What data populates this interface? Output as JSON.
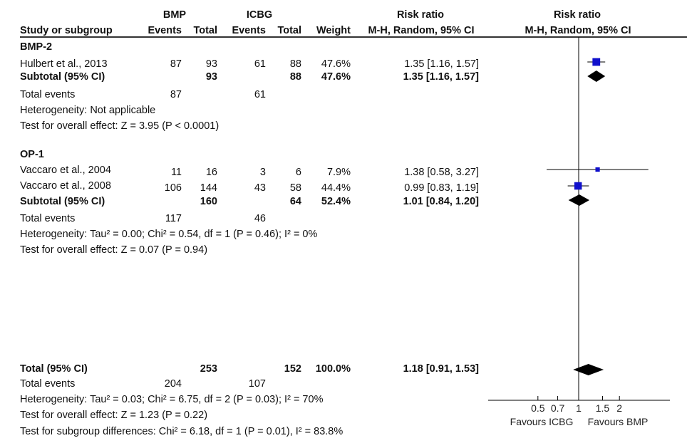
{
  "headers": {
    "group1": "BMP",
    "group2": "ICBG",
    "study_col": "Study or subgroup",
    "events": "Events",
    "total": "Total",
    "weight": "Weight",
    "rr_col": "Risk ratio",
    "rr_method": "M-H, Random, 95% CI",
    "plot_title": "Risk ratio",
    "plot_method": "M-H, Random, 95% CI"
  },
  "subgroups": [
    {
      "name": "BMP-2",
      "studies": [
        {
          "study": "Hulbert et al., 2013",
          "e1": "87",
          "t1": "93",
          "e2": "61",
          "t2": "88",
          "weight": "47.6%",
          "ci": "1.35 [1.16, 1.57]"
        }
      ],
      "subtotal": {
        "label": "Subtotal (95% CI)",
        "t1": "93",
        "t2": "88",
        "weight": "47.6%",
        "ci": "1.35 [1.16, 1.57]"
      },
      "total_events": {
        "label": "Total events",
        "e1": "87",
        "e2": "61"
      },
      "heterogeneity": "Heterogeneity: Not applicable",
      "overall": "Test for overall effect: Z = 3.95 (P < 0.0001)"
    },
    {
      "name": "OP-1",
      "studies": [
        {
          "study": "Vaccaro et al., 2004",
          "e1": "11",
          "t1": "16",
          "e2": "3",
          "t2": "6",
          "weight": "7.9%",
          "ci": "1.38 [0.58, 3.27]"
        },
        {
          "study": "Vaccaro et al., 2008",
          "e1": "106",
          "t1": "144",
          "e2": "43",
          "t2": "58",
          "weight": "44.4%",
          "ci": "0.99 [0.83, 1.19]"
        }
      ],
      "subtotal": {
        "label": "Subtotal (95% CI)",
        "t1": "160",
        "t2": "64",
        "weight": "52.4%",
        "ci": "1.01 [0.84, 1.20]"
      },
      "total_events": {
        "label": "Total events",
        "e1": "117",
        "e2": "46"
      },
      "heterogeneity": "Heterogeneity: Tau² = 0.00; Chi² = 0.54, df = 1 (P = 0.46); I² = 0%",
      "overall": "Test for overall effect: Z = 0.07 (P = 0.94)"
    }
  ],
  "total": {
    "label": "Total (95% CI)",
    "t1": "253",
    "t2": "152",
    "weight": "100.0%",
    "ci": "1.18 [0.91, 1.53]",
    "events_label": "Total events",
    "e1": "204",
    "e2": "107",
    "heterogeneity": "Heterogeneity: Tau² = 0.03; Chi² = 6.75, df = 2 (P = 0.03); I² = 70%",
    "overall": "Test for overall effect: Z = 1.23 (P = 0.22)",
    "subgroup_diff": "Test for subgroup differences: Chi² = 6.18, df = 1 (P = 0.01), I² = 83.8%"
  },
  "axis": {
    "ticks": [
      0.5,
      0.7,
      1,
      1.5,
      2
    ],
    "tick_labels": [
      "0.5",
      "0.7",
      "1",
      "1.5",
      "2"
    ],
    "left_label": "Favours ICBG",
    "right_label": "Favours BMP"
  },
  "colors": {
    "marker": "#1010cc",
    "diamond": "#000000",
    "line": "#000000"
  },
  "chart_data": {
    "type": "forest",
    "scale": "log",
    "xlim": [
      0.4,
      2.5
    ],
    "studies": [
      {
        "name": "Hulbert et al., 2013",
        "rr": 1.35,
        "lo": 1.16,
        "hi": 1.57,
        "weight": 47.6
      },
      {
        "name": "Vaccaro et al., 2004",
        "rr": 1.38,
        "lo": 0.58,
        "hi": 3.27,
        "weight": 7.9
      },
      {
        "name": "Vaccaro et al., 2008",
        "rr": 0.99,
        "lo": 0.83,
        "hi": 1.19,
        "weight": 44.4
      }
    ],
    "summaries": [
      {
        "name": "Subtotal BMP-2",
        "rr": 1.35,
        "lo": 1.16,
        "hi": 1.57
      },
      {
        "name": "Subtotal OP-1",
        "rr": 1.01,
        "lo": 0.84,
        "hi": 1.2
      },
      {
        "name": "Total",
        "rr": 1.18,
        "lo": 0.91,
        "hi": 1.53
      }
    ]
  }
}
